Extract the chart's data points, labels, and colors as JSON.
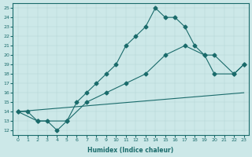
{
  "bg_color": "#cce8e8",
  "line_color": "#1a6b6b",
  "marker": "D",
  "markersize": 2.5,
  "linewidth": 0.8,
  "xlabel": "Humidex (Indice chaleur)",
  "xlim": [
    -0.5,
    23.5
  ],
  "ylim": [
    11.5,
    25.5
  ],
  "xticks": [
    0,
    1,
    2,
    3,
    4,
    5,
    6,
    7,
    8,
    9,
    10,
    11,
    12,
    13,
    14,
    15,
    16,
    17,
    18,
    19,
    20,
    21,
    22,
    23
  ],
  "yticks": [
    12,
    13,
    14,
    15,
    16,
    17,
    18,
    19,
    20,
    21,
    22,
    23,
    24,
    25
  ],
  "curve1_x": [
    0,
    1,
    2,
    3,
    4,
    5,
    6,
    7,
    8,
    9,
    10,
    11,
    12,
    13,
    14,
    15,
    16,
    17,
    18,
    19,
    20,
    22,
    23
  ],
  "curve1_y": [
    14,
    14,
    13,
    13,
    12,
    13,
    15,
    16,
    17,
    18,
    19,
    21,
    22,
    23,
    25,
    24,
    24,
    23,
    21,
    20,
    18,
    18,
    19
  ],
  "curve2_x": [
    0,
    2,
    5,
    7,
    9,
    11,
    13,
    15,
    17,
    19,
    20,
    22,
    23
  ],
  "curve2_y": [
    14,
    13,
    13,
    15,
    16,
    17,
    18,
    20,
    21,
    20,
    20,
    18,
    19
  ],
  "curve3_x": [
    0,
    23
  ],
  "curve3_y": [
    14,
    16
  ]
}
